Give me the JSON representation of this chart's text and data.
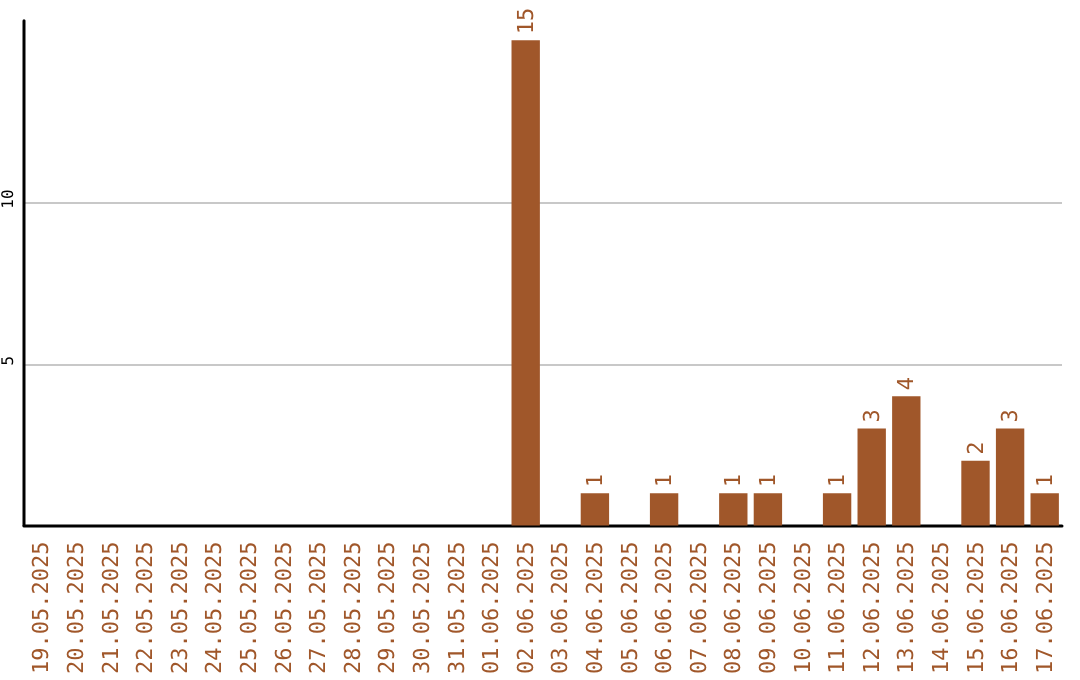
{
  "chart_data": {
    "type": "bar",
    "categories": [
      "19.05.2025",
      "20.05.2025",
      "21.05.2025",
      "22.05.2025",
      "23.05.2025",
      "24.05.2025",
      "25.05.2025",
      "26.05.2025",
      "27.05.2025",
      "28.05.2025",
      "29.05.2025",
      "30.05.2025",
      "31.05.2025",
      "01.06.2025",
      "02.06.2025",
      "03.06.2025",
      "04.06.2025",
      "05.06.2025",
      "06.06.2025",
      "07.06.2025",
      "08.06.2025",
      "09.06.2025",
      "10.06.2025",
      "11.06.2025",
      "12.06.2025",
      "13.06.2025",
      "14.06.2025",
      "15.06.2025",
      "16.06.2025",
      "17.06.2025"
    ],
    "values": [
      0,
      0,
      0,
      0,
      0,
      0,
      0,
      0,
      0,
      0,
      0,
      0,
      0,
      0,
      15,
      0,
      1,
      0,
      1,
      0,
      1,
      1,
      0,
      1,
      3,
      4,
      0,
      2,
      3,
      1
    ],
    "value_labels": [
      null,
      null,
      null,
      null,
      null,
      null,
      null,
      null,
      null,
      null,
      null,
      null,
      null,
      null,
      "15",
      null,
      "1",
      null,
      "1",
      null,
      "1",
      "1",
      null,
      "1",
      "3",
      "4",
      null,
      "2",
      "3",
      "1"
    ],
    "color": "#a0572a",
    "ylim": [
      0,
      15.6
    ],
    "yticks": [
      5,
      10
    ],
    "grid": "y"
  }
}
